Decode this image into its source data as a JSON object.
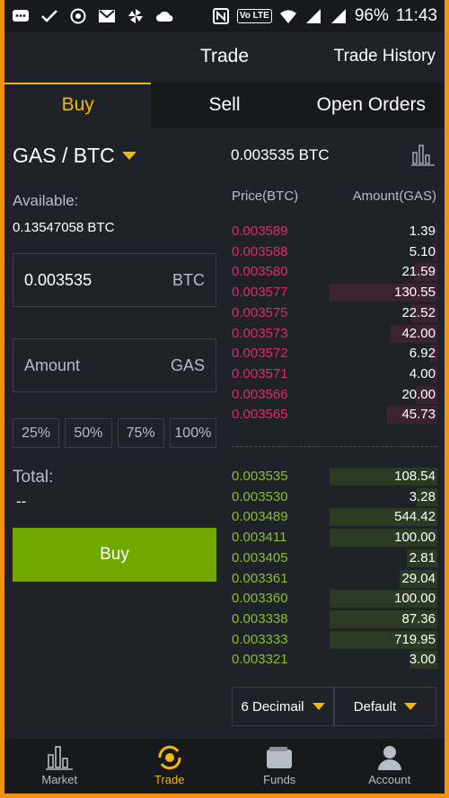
{
  "status_bar": {
    "battery": "96%",
    "time": "11:43",
    "network_badge": "Vo LTE"
  },
  "header": {
    "title": "Trade",
    "history_link": "Trade History"
  },
  "tabs": [
    {
      "label": "Buy"
    },
    {
      "label": "Sell"
    },
    {
      "label": "Open Orders"
    }
  ],
  "pair": {
    "label": "GAS / BTC"
  },
  "available": {
    "label": "Available:",
    "value": "0.13547058 BTC"
  },
  "price_field": {
    "value": "0.003535",
    "unit": "BTC"
  },
  "amount_field": {
    "placeholder": "Amount",
    "unit": "GAS"
  },
  "percent_buttons": [
    "25%",
    "50%",
    "75%",
    "100%"
  ],
  "total": {
    "label": "Total:",
    "value": "--"
  },
  "buy_button": {
    "label": "Buy"
  },
  "last_price": "0.003535 BTC",
  "orderbook": {
    "price_header": "Price(BTC)",
    "amount_header": "Amount(GAS)",
    "asks": [
      {
        "price": "0.003589",
        "amount": "1.39",
        "depth": 0.02
      },
      {
        "price": "0.003588",
        "amount": "5.10",
        "depth": 0.04
      },
      {
        "price": "0.003580",
        "amount": "21.59",
        "depth": 0.22
      },
      {
        "price": "0.003577",
        "amount": "130.55",
        "depth": 1.0
      },
      {
        "price": "0.003575",
        "amount": "22.52",
        "depth": 0.24
      },
      {
        "price": "0.003573",
        "amount": "42.00",
        "depth": 0.43
      },
      {
        "price": "0.003572",
        "amount": "6.92",
        "depth": 0.07
      },
      {
        "price": "0.003571",
        "amount": "4.00",
        "depth": 0.04
      },
      {
        "price": "0.003566",
        "amount": "20.00",
        "depth": 0.2
      },
      {
        "price": "0.003565",
        "amount": "45.73",
        "depth": 0.47
      }
    ],
    "bids": [
      {
        "price": "0.003535",
        "amount": "108.54",
        "depth": 1.0
      },
      {
        "price": "0.003530",
        "amount": "3.28",
        "depth": 0.19
      },
      {
        "price": "0.003489",
        "amount": "544.42",
        "depth": 1.0
      },
      {
        "price": "0.003411",
        "amount": "100.00",
        "depth": 1.0
      },
      {
        "price": "0.003405",
        "amount": "2.81",
        "depth": 0.28
      },
      {
        "price": "0.003361",
        "amount": "29.04",
        "depth": 0.35
      },
      {
        "price": "0.003360",
        "amount": "100.00",
        "depth": 1.0
      },
      {
        "price": "0.003338",
        "amount": "87.36",
        "depth": 1.0
      },
      {
        "price": "0.003333",
        "amount": "719.95",
        "depth": 1.0
      },
      {
        "price": "0.003321",
        "amount": "3.00",
        "depth": 0.25
      }
    ]
  },
  "decimal_select": "6 Decimail",
  "group_select": "Default",
  "nav": [
    {
      "label": "Market"
    },
    {
      "label": "Trade"
    },
    {
      "label": "Funds"
    },
    {
      "label": "Account"
    }
  ],
  "colors": {
    "accent": "#f0b90b",
    "ask": "#e0296d",
    "bid": "#8cbd2b",
    "buy_button": "#70a800",
    "frame": "#f0920e"
  }
}
